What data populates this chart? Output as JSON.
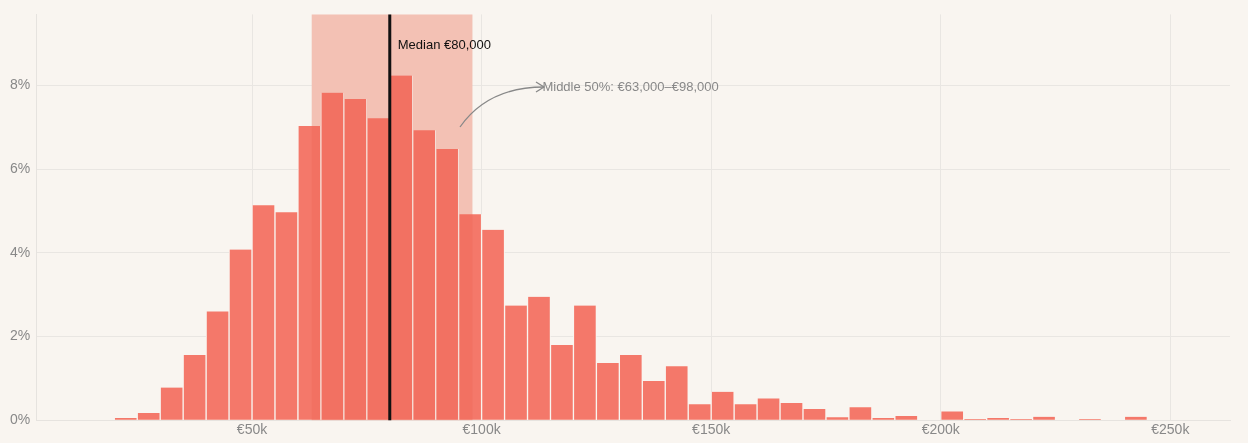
{
  "chart_data": {
    "type": "histogram",
    "bins": [
      20,
      25,
      30,
      35,
      40,
      45,
      50,
      55,
      60,
      65,
      70,
      75,
      80,
      85,
      90,
      95,
      100,
      105,
      110,
      115,
      120,
      125,
      130,
      135,
      140,
      145,
      150,
      155,
      160,
      165,
      170,
      175,
      180,
      185,
      190,
      195,
      200,
      205,
      210,
      215,
      220,
      225,
      230,
      235,
      240,
      245
    ],
    "values": [
      0.05,
      0.17,
      0.78,
      1.56,
      2.6,
      4.08,
      5.14,
      4.97,
      7.03,
      7.83,
      7.68,
      7.22,
      8.24,
      6.93,
      6.48,
      4.92,
      4.55,
      2.74,
      2.95,
      1.8,
      2.74,
      1.37,
      1.56,
      0.94,
      1.29,
      0.38,
      0.68,
      0.38,
      0.52,
      0.41,
      0.27,
      0.07,
      0.31,
      0.05,
      0.1,
      0,
      0.21,
      0.03,
      0.05,
      0.03,
      0.08,
      0,
      0.03,
      0,
      0.08
    ],
    "color": "#f4786a",
    "xlim": [
      3,
      263
    ],
    "xticks": [
      {
        "value": 50,
        "label": "€50k"
      },
      {
        "value": 100,
        "label": "€100k"
      },
      {
        "value": 150,
        "label": "€150k"
      },
      {
        "value": 200,
        "label": "€200k"
      },
      {
        "value": 250,
        "label": "€250k"
      }
    ],
    "ylim": [
      0,
      9.7
    ],
    "yticks": [
      {
        "value": 0,
        "label": "0%"
      },
      {
        "value": 2,
        "label": "2%"
      },
      {
        "value": 4,
        "label": "4%"
      },
      {
        "value": 6,
        "label": "6%"
      },
      {
        "value": 8,
        "label": "8%"
      }
    ],
    "ref_lines": [
      {
        "axis": "x",
        "value": 80,
        "label": "Median €80,000",
        "color": "#111111"
      }
    ],
    "bands": [
      {
        "axis": "x",
        "from": 63,
        "to": 98,
        "label": "Middle 50%: €63,000–€98,000",
        "color": "#f5d3c8"
      }
    ],
    "grid": true,
    "legend": false
  }
}
